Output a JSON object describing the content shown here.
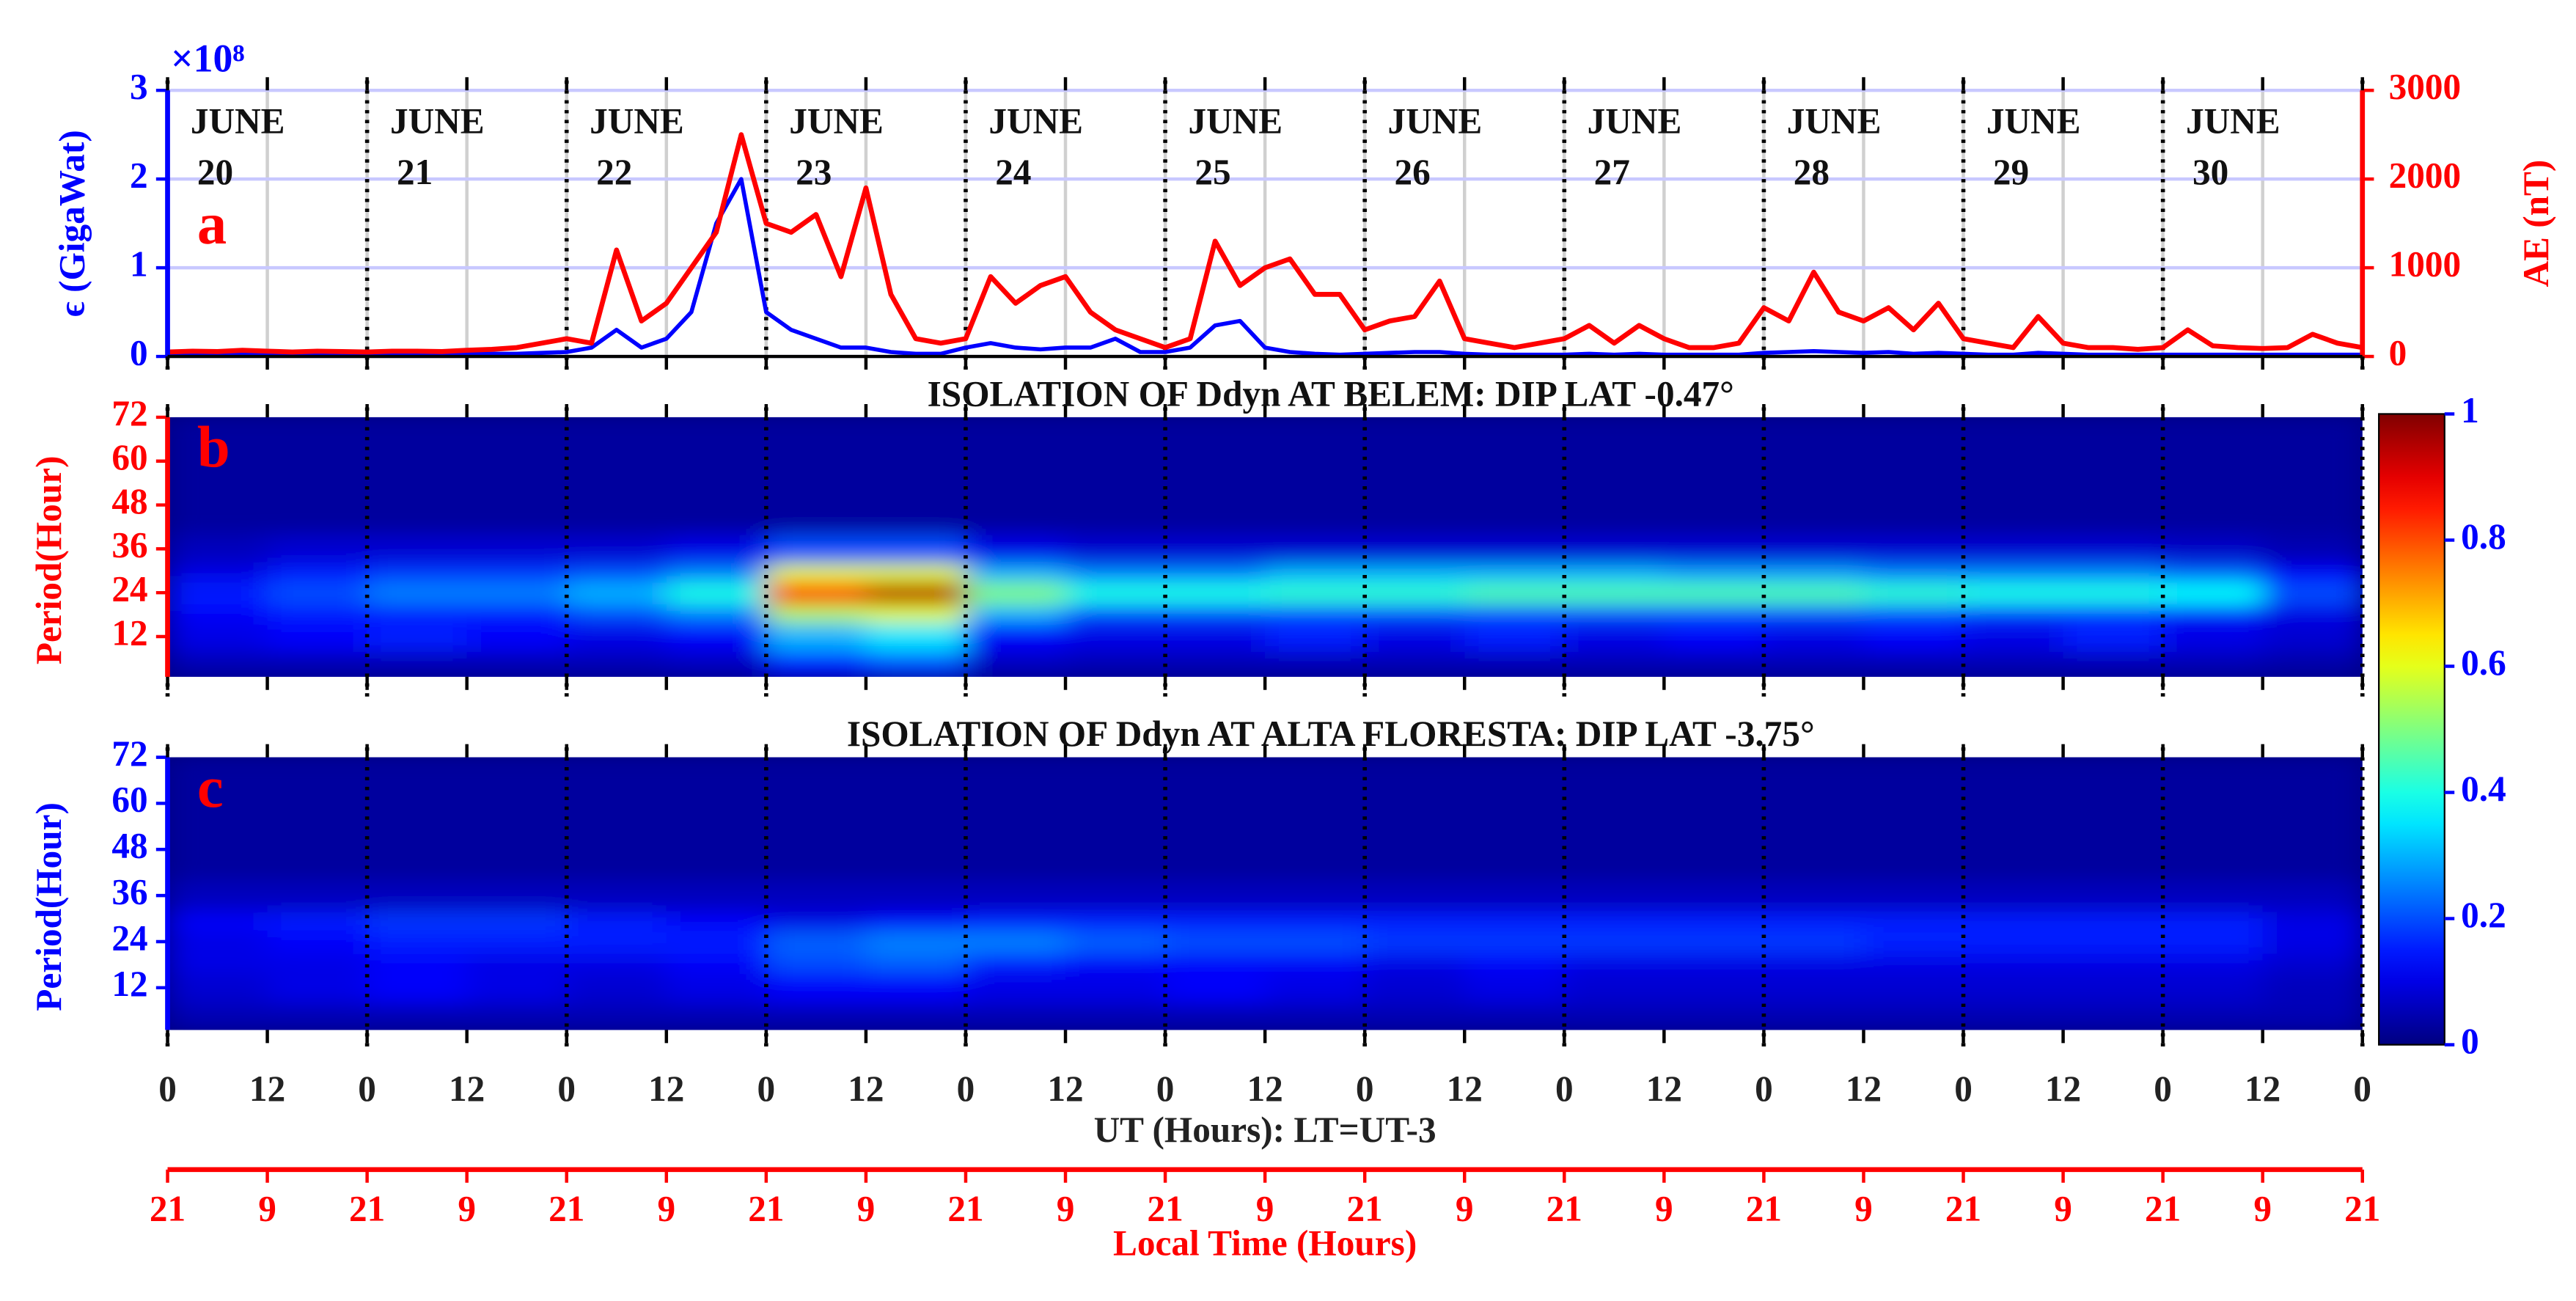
{
  "chart_data": [
    {
      "type": "line",
      "panel_label": "a",
      "ylabel": "ϵ (GigaWat)",
      "y2label": "AE (nT)",
      "y_multiplier": "×10⁸",
      "xlim": [
        0,
        264
      ],
      "xticks": [
        0,
        12,
        24,
        36,
        48,
        60,
        72,
        84,
        96,
        108,
        120,
        132,
        144,
        156,
        168,
        180,
        192,
        204,
        216,
        228,
        240,
        252,
        264
      ],
      "ylim": [
        0,
        3
      ],
      "yticks": [
        0,
        1,
        2,
        3
      ],
      "y2lim": [
        0,
        3000
      ],
      "y2ticks": [
        0,
        1000,
        2000,
        3000
      ],
      "grid": true,
      "day_labels": [
        [
          "JUNE",
          "20"
        ],
        [
          "JUNE",
          "21"
        ],
        [
          "JUNE",
          "22"
        ],
        [
          "JUNE",
          "23"
        ],
        [
          "JUNE",
          "24"
        ],
        [
          "JUNE",
          "25"
        ],
        [
          "JUNE",
          "26"
        ],
        [
          "JUNE",
          "27"
        ],
        [
          "JUNE",
          "28"
        ],
        [
          "JUNE",
          "29"
        ],
        [
          "JUNE",
          "30"
        ]
      ],
      "x": [
        0,
        3,
        6,
        9,
        12,
        15,
        18,
        21,
        24,
        27,
        30,
        33,
        36,
        39,
        42,
        45,
        48,
        51,
        54,
        57,
        60,
        63,
        66,
        69,
        72,
        75,
        78,
        81,
        84,
        87,
        90,
        93,
        96,
        99,
        102,
        105,
        108,
        111,
        114,
        117,
        120,
        123,
        126,
        129,
        132,
        135,
        138,
        141,
        144,
        147,
        150,
        153,
        156,
        159,
        162,
        165,
        168,
        171,
        174,
        177,
        180,
        183,
        186,
        189,
        192,
        195,
        198,
        201,
        204,
        207,
        210,
        213,
        216,
        219,
        222,
        225,
        228,
        231,
        234,
        237,
        240,
        243,
        246,
        249,
        252,
        255,
        258,
        261,
        264
      ],
      "series": [
        {
          "name": "ϵ",
          "color": "#0000ff",
          "values": [
            0.02,
            0.02,
            0.02,
            0.02,
            0.02,
            0.02,
            0.02,
            0.02,
            0.02,
            0.02,
            0.02,
            0.02,
            0.03,
            0.03,
            0.03,
            0.04,
            0.05,
            0.1,
            0.3,
            0.1,
            0.2,
            0.5,
            1.5,
            2,
            0.5,
            0.3,
            0.2,
            0.1,
            0.1,
            0.05,
            0.03,
            0.03,
            0.1,
            0.15,
            0.1,
            0.08,
            0.1,
            0.1,
            0.2,
            0.05,
            0.05,
            0.1,
            0.35,
            0.4,
            0.1,
            0.05,
            0.03,
            0.02,
            0.03,
            0.04,
            0.05,
            0.05,
            0.03,
            0.02,
            0.02,
            0.02,
            0.02,
            0.03,
            0.02,
            0.03,
            0.02,
            0.02,
            0.02,
            0.02,
            0.04,
            0.05,
            0.06,
            0.05,
            0.04,
            0.05,
            0.03,
            0.04,
            0.03,
            0.02,
            0.02,
            0.04,
            0.03,
            0.02,
            0.02,
            0.02,
            0.02,
            0.02,
            0.02,
            0.02,
            0.02,
            0.02,
            0.02,
            0.02,
            0.02
          ]
        },
        {
          "name": "AE",
          "color": "#ff0000",
          "axis": "y2",
          "values": [
            50,
            60,
            55,
            70,
            60,
            50,
            60,
            55,
            50,
            60,
            60,
            55,
            70,
            80,
            100,
            150,
            200,
            150,
            1200,
            400,
            600,
            1000,
            1400,
            2500,
            1500,
            1400,
            1600,
            900,
            1900,
            700,
            200,
            150,
            200,
            900,
            600,
            800,
            900,
            500,
            300,
            200,
            100,
            200,
            1300,
            800,
            1000,
            1100,
            700,
            700,
            300,
            400,
            450,
            850,
            200,
            150,
            100,
            150,
            200,
            350,
            150,
            350,
            200,
            100,
            100,
            150,
            550,
            400,
            950,
            500,
            400,
            550,
            300,
            600,
            200,
            150,
            100,
            450,
            150,
            100,
            100,
            80,
            100,
            300,
            120,
            100,
            90,
            100,
            250,
            150,
            100
          ]
        }
      ]
    },
    {
      "type": "heatmap",
      "panel_label": "b",
      "title": "ISOLATION OF Ddyn AT BELEM: DIP LAT -0.47°",
      "ylabel": "Period(Hour)",
      "axis_color": "#ff0000",
      "xlim": [
        0,
        264
      ],
      "xticks": [
        0,
        12,
        24,
        36,
        48,
        60,
        72,
        84,
        96,
        108,
        120,
        132,
        144,
        156,
        168,
        180,
        192,
        204,
        216,
        228,
        240,
        252,
        264
      ],
      "ylim": [
        1,
        72
      ],
      "yticks": [
        12,
        24,
        36,
        48,
        60,
        72
      ],
      "xbins": [
        0,
        12,
        24,
        36,
        48,
        60,
        72,
        84,
        96,
        108,
        120,
        132,
        144,
        156,
        168,
        180,
        192,
        204,
        216,
        228,
        240,
        252,
        264
      ],
      "ybins": [
        1,
        8,
        16,
        21,
        27,
        32,
        40,
        72
      ],
      "z": [
        [
          0.05,
          0.05,
          0.05,
          0.05,
          0.05,
          0.06,
          0.15,
          0.2,
          0.06,
          0.05,
          0.05,
          0.05,
          0.05,
          0.05,
          0.05,
          0.05,
          0.05,
          0.05,
          0.05,
          0.05,
          0.05,
          0.04
        ],
        [
          0.1,
          0.12,
          0.15,
          0.12,
          0.1,
          0.12,
          0.3,
          0.35,
          0.12,
          0.1,
          0.1,
          0.15,
          0.1,
          0.15,
          0.1,
          0.12,
          0.1,
          0.12,
          0.1,
          0.15,
          0.1,
          0.08
        ],
        [
          0.12,
          0.15,
          0.15,
          0.15,
          0.2,
          0.25,
          0.55,
          0.6,
          0.3,
          0.2,
          0.2,
          0.2,
          0.2,
          0.2,
          0.2,
          0.2,
          0.2,
          0.2,
          0.18,
          0.18,
          0.15,
          0.1
        ],
        [
          0.15,
          0.2,
          0.25,
          0.25,
          0.3,
          0.4,
          0.85,
          0.95,
          0.5,
          0.4,
          0.4,
          0.42,
          0.42,
          0.45,
          0.45,
          0.45,
          0.45,
          0.42,
          0.4,
          0.4,
          0.38,
          0.2
        ],
        [
          0.1,
          0.15,
          0.18,
          0.18,
          0.2,
          0.25,
          0.6,
          0.6,
          0.3,
          0.25,
          0.25,
          0.3,
          0.3,
          0.3,
          0.3,
          0.28,
          0.28,
          0.25,
          0.25,
          0.25,
          0.22,
          0.12
        ],
        [
          0.06,
          0.08,
          0.08,
          0.08,
          0.08,
          0.1,
          0.2,
          0.2,
          0.1,
          0.08,
          0.08,
          0.08,
          0.08,
          0.08,
          0.08,
          0.08,
          0.08,
          0.08,
          0.08,
          0.08,
          0.07,
          0.05
        ],
        [
          0.03,
          0.03,
          0.03,
          0.03,
          0.03,
          0.03,
          0.03,
          0.03,
          0.03,
          0.03,
          0.03,
          0.03,
          0.03,
          0.03,
          0.03,
          0.03,
          0.03,
          0.03,
          0.03,
          0.03,
          0.03,
          0.03
        ]
      ]
    },
    {
      "type": "heatmap",
      "panel_label": "c",
      "title": "ISOLATION OF Ddyn AT ALTA FLORESTA: DIP LAT -3.75°",
      "ylabel": "Period(Hour)",
      "axis_color": "#0000ff",
      "xlabel": "UT (Hours): LT=UT-3",
      "x2label": "Local Time (Hours)",
      "xlim": [
        0,
        264
      ],
      "xticks": [
        0,
        12,
        {
          "value": 24,
          "label": "0"
        },
        {
          "value": 36,
          "label": "12"
        },
        {
          "value": 48,
          "label": "0"
        },
        {
          "value": 60,
          "label": "12"
        },
        {
          "value": 72,
          "label": "0"
        },
        {
          "value": 84,
          "label": "12"
        },
        {
          "value": 96,
          "label": "0"
        },
        {
          "value": 108,
          "label": "12"
        },
        {
          "value": 120,
          "label": "0"
        },
        {
          "value": 132,
          "label": "12"
        },
        {
          "value": 144,
          "label": "0"
        },
        {
          "value": 156,
          "label": "12"
        },
        {
          "value": 168,
          "label": "0"
        },
        {
          "value": 180,
          "label": "12"
        },
        {
          "value": 192,
          "label": "0"
        },
        {
          "value": 204,
          "label": "12"
        },
        {
          "value": 216,
          "label": "0"
        },
        {
          "value": 228,
          "label": "12"
        },
        {
          "value": 240,
          "label": "0"
        },
        {
          "value": 252,
          "label": "12"
        },
        {
          "value": 264,
          "label": "0"
        }
      ],
      "x2ticks": [
        {
          "value": 0,
          "label": "21"
        },
        {
          "value": 12,
          "label": "9"
        },
        {
          "value": 24,
          "label": "21"
        },
        {
          "value": 36,
          "label": "9"
        },
        {
          "value": 48,
          "label": "21"
        },
        {
          "value": 60,
          "label": "9"
        },
        {
          "value": 72,
          "label": "21"
        },
        {
          "value": 84,
          "label": "9"
        },
        {
          "value": 96,
          "label": "21"
        },
        {
          "value": 108,
          "label": "9"
        },
        {
          "value": 120,
          "label": "21"
        },
        {
          "value": 132,
          "label": "9"
        },
        {
          "value": 144,
          "label": "21"
        },
        {
          "value": 156,
          "label": "9"
        },
        {
          "value": 168,
          "label": "21"
        },
        {
          "value": 180,
          "label": "9"
        },
        {
          "value": 192,
          "label": "21"
        },
        {
          "value": 204,
          "label": "9"
        },
        {
          "value": 216,
          "label": "21"
        },
        {
          "value": 228,
          "label": "9"
        },
        {
          "value": 240,
          "label": "21"
        },
        {
          "value": 252,
          "label": "9"
        },
        {
          "value": 264,
          "label": "21"
        }
      ],
      "ylim": [
        1,
        72
      ],
      "yticks": [
        12,
        24,
        36,
        48,
        60,
        72
      ],
      "xbins": [
        0,
        12,
        24,
        36,
        48,
        60,
        72,
        84,
        96,
        108,
        120,
        132,
        144,
        156,
        168,
        180,
        192,
        204,
        216,
        228,
        240,
        252,
        264
      ],
      "ybins": [
        1,
        8,
        16,
        21,
        27,
        32,
        40,
        72
      ],
      "z": [
        [
          0.05,
          0.05,
          0.05,
          0.05,
          0.05,
          0.05,
          0.05,
          0.05,
          0.05,
          0.05,
          0.05,
          0.05,
          0.05,
          0.05,
          0.05,
          0.05,
          0.05,
          0.05,
          0.05,
          0.05,
          0.05,
          0.05
        ],
        [
          0.08,
          0.1,
          0.12,
          0.1,
          0.08,
          0.1,
          0.12,
          0.12,
          0.1,
          0.1,
          0.12,
          0.1,
          0.08,
          0.1,
          0.08,
          0.08,
          0.08,
          0.08,
          0.08,
          0.08,
          0.08,
          0.06
        ],
        [
          0.1,
          0.1,
          0.12,
          0.1,
          0.1,
          0.12,
          0.2,
          0.22,
          0.15,
          0.12,
          0.12,
          0.12,
          0.1,
          0.12,
          0.1,
          0.1,
          0.1,
          0.1,
          0.1,
          0.1,
          0.1,
          0.08
        ],
        [
          0.1,
          0.12,
          0.15,
          0.15,
          0.15,
          0.15,
          0.22,
          0.25,
          0.25,
          0.22,
          0.2,
          0.2,
          0.18,
          0.18,
          0.18,
          0.18,
          0.18,
          0.16,
          0.15,
          0.15,
          0.15,
          0.1
        ],
        [
          0.12,
          0.15,
          0.18,
          0.18,
          0.15,
          0.12,
          0.1,
          0.12,
          0.15,
          0.15,
          0.15,
          0.15,
          0.15,
          0.15,
          0.15,
          0.15,
          0.15,
          0.15,
          0.15,
          0.15,
          0.15,
          0.1
        ],
        [
          0.06,
          0.06,
          0.06,
          0.06,
          0.06,
          0.06,
          0.06,
          0.06,
          0.06,
          0.06,
          0.06,
          0.06,
          0.06,
          0.06,
          0.06,
          0.06,
          0.06,
          0.06,
          0.06,
          0.06,
          0.06,
          0.06
        ],
        [
          0.03,
          0.03,
          0.03,
          0.03,
          0.03,
          0.03,
          0.03,
          0.03,
          0.03,
          0.03,
          0.03,
          0.03,
          0.03,
          0.03,
          0.03,
          0.03,
          0.03,
          0.03,
          0.03,
          0.03,
          0.03,
          0.03
        ]
      ]
    },
    {
      "type": "colorbar",
      "colormap": "jet",
      "clim": [
        0,
        1
      ],
      "cticks": [
        0,
        0.2,
        0.4,
        0.6,
        0.8,
        1
      ]
    }
  ]
}
